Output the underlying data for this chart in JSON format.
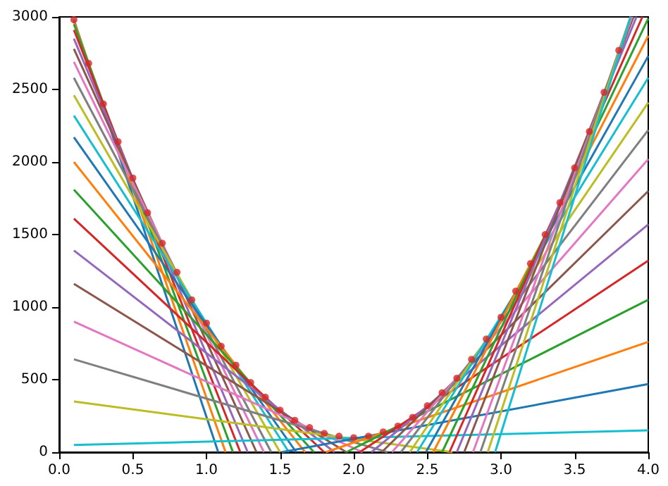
{
  "chart_data": {
    "type": "line",
    "xlim": [
      0,
      4
    ],
    "ylim": [
      0,
      3000
    ],
    "xticks": [
      {
        "value": 0,
        "label": "0.0"
      },
      0.5,
      {
        "value": 1,
        "label": "1.0"
      },
      1.5,
      {
        "value": 2,
        "label": "2.0"
      },
      2.5,
      {
        "value": 3,
        "label": "3.0"
      },
      3.5,
      {
        "value": 4,
        "label": "4.0"
      }
    ],
    "yticks": [
      0,
      500,
      1000,
      1500,
      2000,
      2500,
      3000
    ],
    "series": [
      {
        "color": "#1f77b4",
        "x": [
          0.1,
          1.08
        ],
        "values": [
          2980,
          0
        ]
      },
      {
        "color": "#ff7f0e",
        "x": [
          0.1,
          1.13
        ],
        "values": [
          2970,
          0
        ]
      },
      {
        "color": "#2ca02c",
        "x": [
          0.1,
          1.18
        ],
        "values": [
          2950,
          0
        ]
      },
      {
        "color": "#d62728",
        "x": [
          0.1,
          1.23
        ],
        "values": [
          2910,
          0
        ]
      },
      {
        "color": "#9467bd",
        "x": [
          0.1,
          1.28
        ],
        "values": [
          2850,
          0
        ]
      },
      {
        "color": "#8c564b",
        "x": [
          0.1,
          1.34
        ],
        "values": [
          2780,
          0
        ]
      },
      {
        "color": "#e377c2",
        "x": [
          0.1,
          1.39
        ],
        "values": [
          2690,
          0
        ]
      },
      {
        "color": "#7f7f7f",
        "x": [
          0.1,
          1.44
        ],
        "values": [
          2580,
          0
        ]
      },
      {
        "color": "#bcbd22",
        "x": [
          0.1,
          1.5
        ],
        "values": [
          2460,
          0
        ]
      },
      {
        "color": "#17becf",
        "x": [
          0.1,
          1.56
        ],
        "values": [
          2320,
          0
        ]
      },
      {
        "color": "#1f77b4",
        "x": [
          0.1,
          1.61
        ],
        "values": [
          2170,
          0
        ]
      },
      {
        "color": "#ff7f0e",
        "x": [
          0.1,
          1.67
        ],
        "values": [
          2000,
          0
        ]
      },
      {
        "color": "#2ca02c",
        "x": [
          0.1,
          1.73
        ],
        "values": [
          1810,
          0
        ]
      },
      {
        "color": "#d62728",
        "x": [
          0.1,
          1.8
        ],
        "values": [
          1610,
          0
        ]
      },
      {
        "color": "#9467bd",
        "x": [
          0.1,
          1.87
        ],
        "values": [
          1390,
          0
        ]
      },
      {
        "color": "#8c564b",
        "x": [
          0.1,
          1.95
        ],
        "values": [
          1160,
          0
        ]
      },
      {
        "color": "#e377c2",
        "x": [
          0.1,
          2.06
        ],
        "values": [
          900,
          0
        ]
      },
      {
        "color": "#7f7f7f",
        "x": [
          0.1,
          2.23
        ],
        "values": [
          640,
          0
        ]
      },
      {
        "color": "#bcbd22",
        "x": [
          0.1,
          2.67
        ],
        "values": [
          350,
          0
        ]
      },
      {
        "color": "#17becf",
        "x": [
          0.1,
          4
        ],
        "values": [
          50,
          150
        ]
      },
      {
        "color": "#1f77b4",
        "x": [
          1.51,
          4
        ],
        "values": [
          0,
          470
        ]
      },
      {
        "color": "#ff7f0e",
        "x": [
          1.81,
          4
        ],
        "values": [
          0,
          760
        ]
      },
      {
        "color": "#2ca02c",
        "x": [
          1.95,
          4
        ],
        "values": [
          0,
          1050
        ]
      },
      {
        "color": "#d62728",
        "x": [
          2.04,
          4
        ],
        "values": [
          0,
          1320
        ]
      },
      {
        "color": "#9467bd",
        "x": [
          2.12,
          4
        ],
        "values": [
          0,
          1570
        ]
      },
      {
        "color": "#8c564b",
        "x": [
          2.19,
          4
        ],
        "values": [
          0,
          1800
        ]
      },
      {
        "color": "#e377c2",
        "x": [
          2.26,
          4
        ],
        "values": [
          0,
          2020
        ]
      },
      {
        "color": "#7f7f7f",
        "x": [
          2.32,
          4
        ],
        "values": [
          0,
          2220
        ]
      },
      {
        "color": "#bcbd22",
        "x": [
          2.38,
          4
        ],
        "values": [
          0,
          2410
        ]
      },
      {
        "color": "#17becf",
        "x": [
          2.43,
          4
        ],
        "values": [
          0,
          2580
        ]
      },
      {
        "color": "#1f77b4",
        "x": [
          2.49,
          4
        ],
        "values": [
          0,
          2730
        ]
      },
      {
        "color": "#ff7f0e",
        "x": [
          2.54,
          4
        ],
        "values": [
          0,
          2870
        ]
      },
      {
        "color": "#2ca02c",
        "x": [
          2.6,
          4
        ],
        "values": [
          0,
          2990
        ]
      },
      {
        "color": "#d62728",
        "x": [
          2.65,
          3.96
        ],
        "values": [
          0,
          3000
        ]
      },
      {
        "color": "#9467bd",
        "x": [
          2.7,
          3.92
        ],
        "values": [
          0,
          3000
        ]
      },
      {
        "color": "#8c564b",
        "x": [
          2.75,
          3.9
        ],
        "values": [
          0,
          3000
        ]
      },
      {
        "color": "#e377c2",
        "x": [
          2.81,
          3.89
        ],
        "values": [
          0,
          3000
        ]
      },
      {
        "color": "#7f7f7f",
        "x": [
          2.86,
          3.88
        ],
        "values": [
          0,
          3000
        ]
      },
      {
        "color": "#bcbd22",
        "x": [
          2.91,
          3.88
        ],
        "values": [
          0,
          3000
        ]
      },
      {
        "color": "#17becf",
        "x": [
          2.96,
          3.88
        ],
        "values": [
          0,
          3000
        ]
      },
      {
        "type": "scatter",
        "marker": "circle",
        "color": "#d62728",
        "x": [
          0.1,
          0.2,
          0.3,
          0.4,
          0.5,
          0.6,
          0.7,
          0.8,
          0.9,
          1.0,
          1.1,
          1.2,
          1.3,
          1.4,
          1.5,
          1.6,
          1.7,
          1.8,
          1.9,
          2.0,
          2.1,
          2.2,
          2.3,
          2.4,
          2.5,
          2.6,
          2.7,
          2.8,
          2.9,
          3.0,
          3.1,
          3.2,
          3.3,
          3.4,
          3.5,
          3.6,
          3.7,
          3.8
        ],
        "values": [
          2980,
          2680,
          2400,
          2140,
          1890,
          1650,
          1440,
          1240,
          1050,
          890,
          730,
          600,
          480,
          380,
          290,
          220,
          170,
          130,
          110,
          100,
          110,
          140,
          180,
          240,
          320,
          410,
          510,
          640,
          780,
          930,
          1110,
          1300,
          1500,
          1720,
          1960,
          2210,
          2480,
          2770
        ]
      }
    ]
  }
}
